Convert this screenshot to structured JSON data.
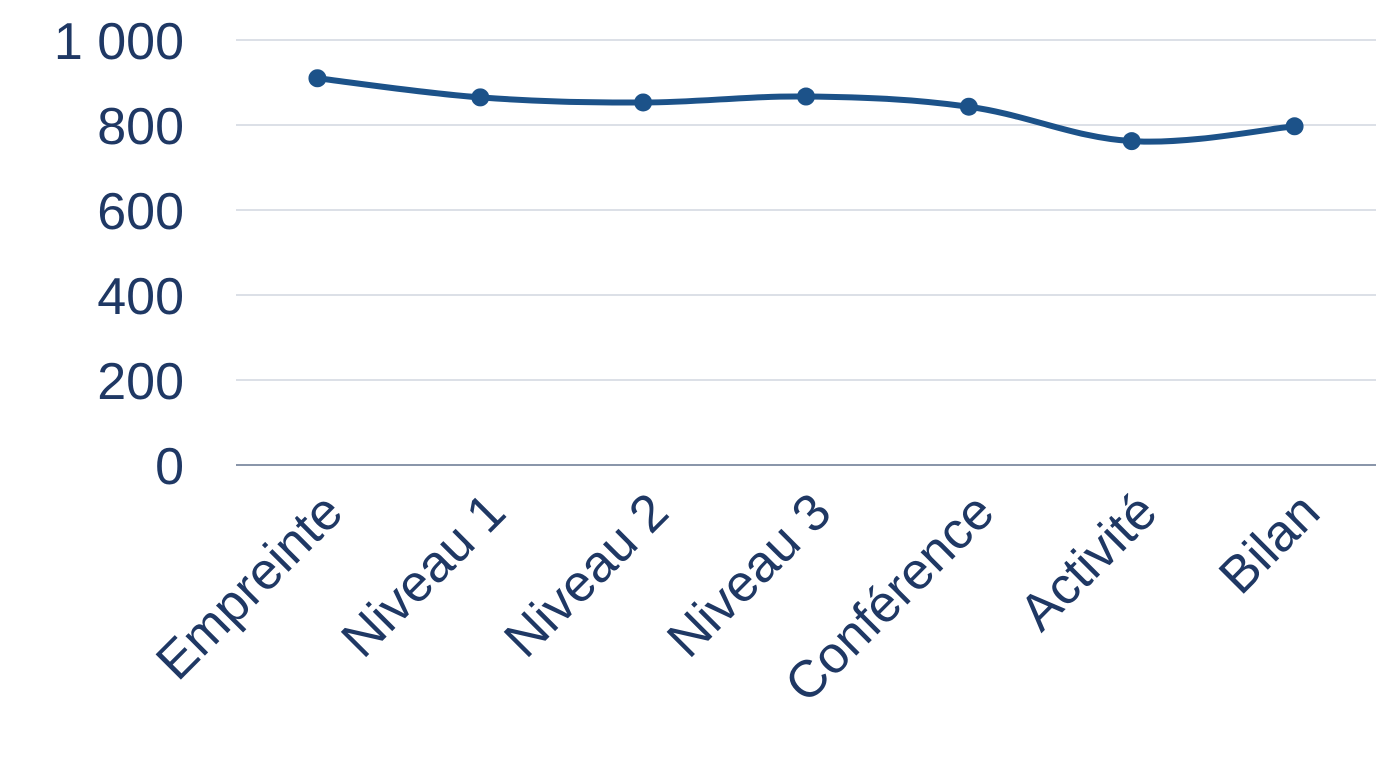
{
  "chart_data": {
    "type": "line",
    "categories": [
      "Empreinte",
      "Niveau 1",
      "Niveau 2",
      "Niveau 3",
      "Conférence",
      "Activité",
      "Bilan"
    ],
    "series": [
      {
        "values": [
          910,
          865,
          853,
          867,
          843,
          762,
          797
        ]
      }
    ],
    "y_ticks": [
      "0",
      "200",
      "400",
      "600",
      "800",
      "1 000"
    ],
    "y_tick_values": [
      0,
      200,
      400,
      600,
      800,
      1000
    ],
    "ylim": [
      0,
      1000
    ],
    "grid": true,
    "legend": "none",
    "smooth": true,
    "title": "",
    "xlabel": "",
    "ylabel": ""
  },
  "colors": {
    "series": "#1c5289",
    "text": "#1f3864",
    "grid": "#d0d5df",
    "axis": "#8a96aa"
  }
}
